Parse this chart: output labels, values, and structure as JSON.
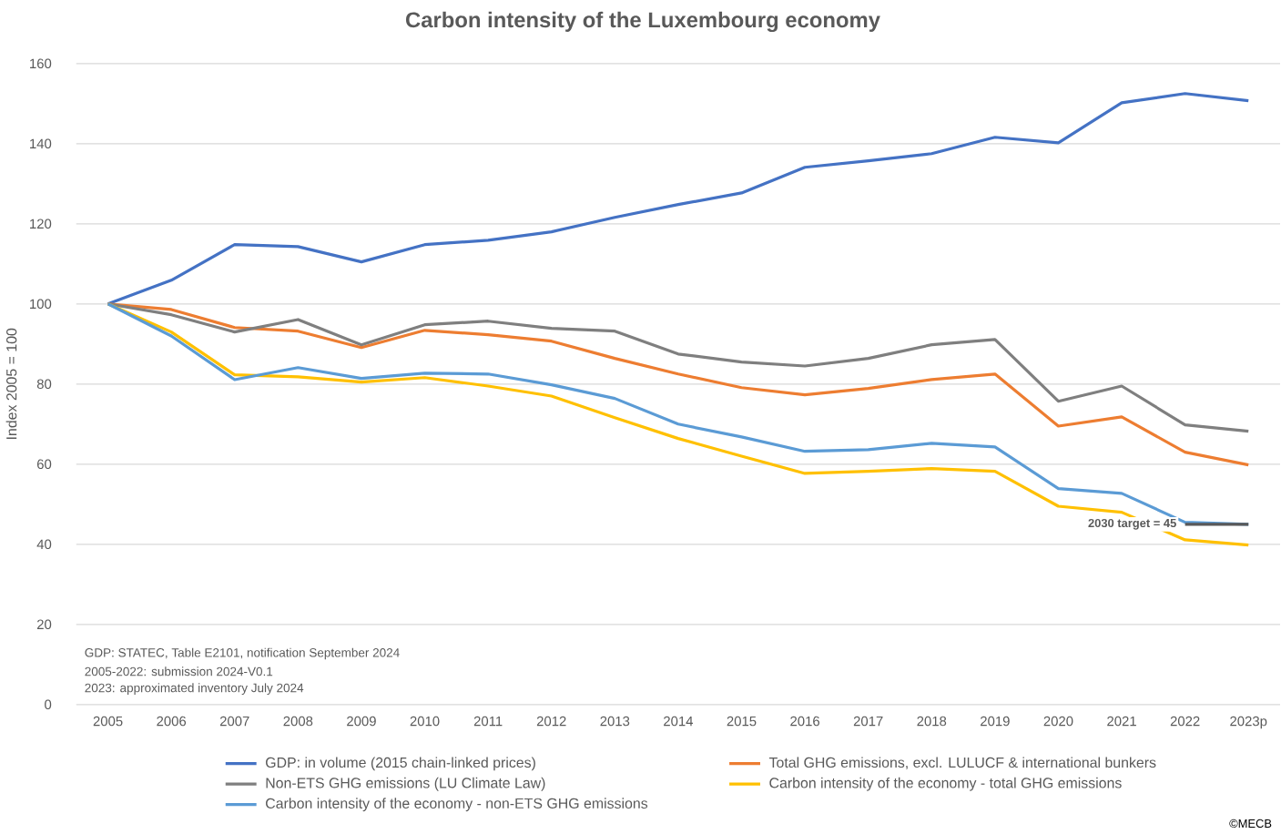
{
  "chart_data": {
    "type": "line",
    "title": "Carbon intensity of the Luxembourg economy",
    "ylabel": "Index 2005 = 100",
    "categories": [
      "2005",
      "2006",
      "2007",
      "2008",
      "2009",
      "2010",
      "2011",
      "2012",
      "2013",
      "2014",
      "2015",
      "2016",
      "2017",
      "2018",
      "2019",
      "2020",
      "2021",
      "2022",
      "2023p"
    ],
    "series": [
      {
        "name": "GDP: in volume (2015 chain-linked prices)",
        "color": "#4472c4",
        "values": [
          100,
          105.9,
          114.8,
          114.3,
          110.5,
          114.8,
          115.9,
          118,
          121.6,
          124.8,
          127.7,
          134.1,
          135.7,
          137.5,
          141.6,
          140.2,
          150.2,
          152.5,
          150.7
        ]
      },
      {
        "name": "Total GHG emissions, excl. LULUCF & international bunkers",
        "color": "#ed7d31",
        "values": [
          100,
          98.6,
          94.1,
          93.2,
          89.1,
          93.4,
          92.3,
          90.7,
          86.4,
          82.5,
          79.1,
          77.3,
          78.9,
          81.1,
          82.5,
          69.5,
          71.8,
          63,
          59.8
        ]
      },
      {
        "name": "Non-ETS GHG emissions (LU Climate Law)",
        "color": "#7f7f7f",
        "values": [
          100,
          97.3,
          93,
          96.1,
          89.8,
          94.8,
          95.7,
          93.9,
          93.2,
          87.5,
          85.5,
          84.5,
          86.4,
          89.8,
          91.1,
          75.7,
          79.5,
          69.8,
          68.2
        ]
      },
      {
        "name": "Carbon intensity of the economy - total GHG emissions",
        "color": "#ffc000",
        "values": [
          100,
          93,
          82.3,
          81.8,
          80.5,
          81.6,
          79.5,
          77,
          71.6,
          66.4,
          62,
          57.7,
          58.2,
          58.9,
          58.2,
          49.5,
          48,
          41.1,
          39.8
        ]
      },
      {
        "name": "Carbon intensity of the economy - non-ETS GHG emissions",
        "color": "#5b9bd5",
        "values": [
          100,
          92,
          81.1,
          84.1,
          81.4,
          82.7,
          82.5,
          79.8,
          76.4,
          70,
          66.8,
          63.2,
          63.6,
          65.2,
          64.3,
          53.9,
          52.7,
          45.5,
          45
        ]
      },
      {
        "color": "#595959",
        "values": [
          null,
          null,
          null,
          null,
          null,
          null,
          null,
          null,
          null,
          null,
          null,
          null,
          null,
          null,
          null,
          null,
          null,
          45,
          45
        ]
      }
    ],
    "ylim": [
      0,
      160
    ],
    "yticks": [
      0,
      20,
      40,
      60,
      80,
      100,
      120,
      140,
      160
    ],
    "grid": "y",
    "legend": "bottom",
    "annotations": [
      {
        "text": "2030 target = 45",
        "x": "2022",
        "y": 45
      },
      "GDP: STATEC, Table E2101, notification September 2024",
      "2005-2022: submission 2024-V0.1",
      "2023: approximated inventory July 2024",
      "©MECB"
    ]
  }
}
